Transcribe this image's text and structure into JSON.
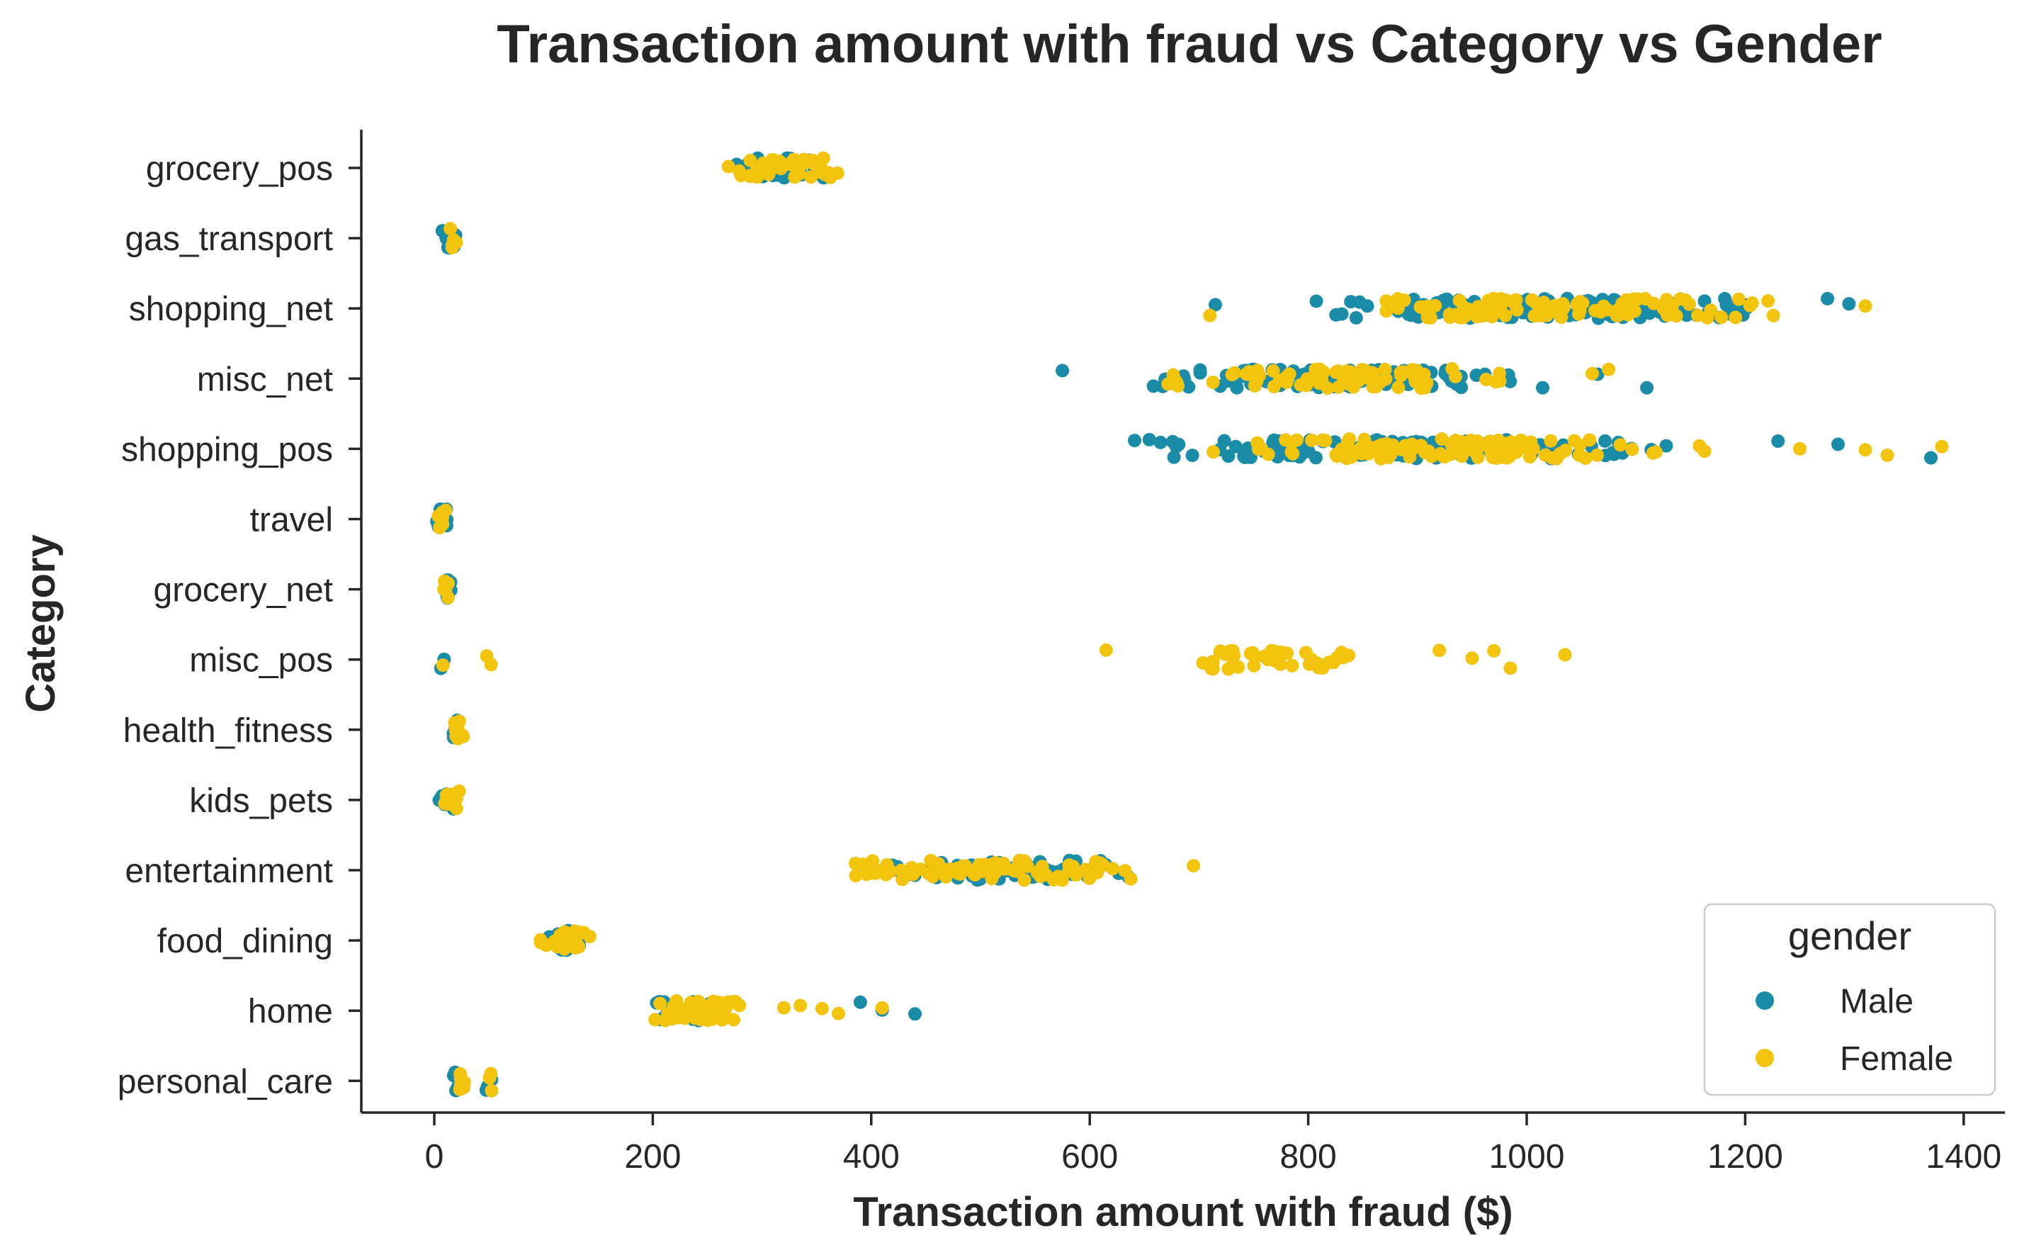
{
  "chart_data": {
    "type": "scatter",
    "title": "Transaction amount with fraud vs Category vs Gender",
    "xlabel": "Transaction amount with fraud ($)",
    "ylabel": "Category",
    "xlim": [
      -67,
      1445
    ],
    "xticks": [
      0,
      200,
      400,
      600,
      800,
      1000,
      1200,
      1400
    ],
    "categories": [
      "grocery_pos",
      "gas_transport",
      "shopping_net",
      "misc_net",
      "shopping_pos",
      "travel",
      "grocery_net",
      "misc_pos",
      "health_fitness",
      "kids_pets",
      "entertainment",
      "food_dining",
      "home",
      "personal_care"
    ],
    "grid": false,
    "legend": {
      "title": "gender",
      "position": "bottom-right"
    },
    "series": [
      {
        "name": "Male",
        "color": "#1a8ca8",
        "groups": [
          {
            "category": "grocery_pos",
            "ranges": [
              [
                238,
                390,
                40
              ]
            ],
            "points": []
          },
          {
            "category": "gas_transport",
            "ranges": [
              [
                5,
                25,
                12
              ]
            ],
            "points": []
          },
          {
            "category": "shopping_net",
            "ranges": [
              [
                735,
                1300,
                130
              ]
            ],
            "points": [
              715,
              1295
            ]
          },
          {
            "category": "misc_net",
            "ranges": [
              [
                600,
                1050,
                100
              ]
            ],
            "points": [
              575,
              1065,
              1110
            ]
          },
          {
            "category": "shopping_pos",
            "ranges": [
              [
                600,
                1190,
                130
              ]
            ],
            "points": [
              1230,
              1285,
              1370
            ]
          },
          {
            "category": "travel",
            "ranges": [
              [
                0,
                15,
                10
              ]
            ],
            "points": []
          },
          {
            "category": "grocery_net",
            "ranges": [
              [
                5,
                20,
                10
              ]
            ],
            "points": []
          },
          {
            "category": "misc_pos",
            "ranges": [],
            "points": [
              6,
              9
            ]
          },
          {
            "category": "health_fitness",
            "ranges": [
              [
                15,
                25,
                6
              ]
            ],
            "points": []
          },
          {
            "category": "kids_pets",
            "ranges": [
              [
                0,
                25,
                10
              ]
            ],
            "points": []
          },
          {
            "category": "entertainment",
            "ranges": [
              [
                365,
                690,
                70
              ]
            ],
            "points": []
          },
          {
            "category": "food_dining",
            "ranges": [
              [
                95,
                145,
                16
              ]
            ],
            "points": []
          },
          {
            "category": "home",
            "ranges": [
              [
                178,
                285,
                25
              ]
            ],
            "points": [
              390,
              410,
              440
            ]
          },
          {
            "category": "personal_care",
            "ranges": [
              [
                15,
                25,
                4
              ],
              [
                45,
                55,
                4
              ]
            ],
            "points": []
          }
        ]
      },
      {
        "name": "Female",
        "color": "#f2c40c",
        "groups": [
          {
            "category": "grocery_pos",
            "ranges": [
              [
                240,
                400,
                40
              ]
            ],
            "points": []
          },
          {
            "category": "gas_transport",
            "ranges": [
              [
                8,
                22,
                6
              ]
            ],
            "points": []
          },
          {
            "category": "shopping_net",
            "ranges": [
              [
                740,
                1290,
                110
              ]
            ],
            "points": [
              710,
              1310
            ]
          },
          {
            "category": "misc_net",
            "ranges": [
              [
                620,
                1040,
                80
              ]
            ],
            "points": [
              1060,
              1075
            ]
          },
          {
            "category": "shopping_pos",
            "ranges": [
              [
                630,
                1200,
                110
              ]
            ],
            "points": [
              1250,
              1330,
              1380,
              1310
            ]
          },
          {
            "category": "travel",
            "ranges": [
              [
                0,
                15,
                8
              ]
            ],
            "points": []
          },
          {
            "category": "grocery_net",
            "ranges": [
              [
                5,
                15,
                6
              ]
            ],
            "points": []
          },
          {
            "category": "misc_pos",
            "ranges": [
              [
                660,
                890,
                45
              ]
            ],
            "points": [
              8,
              48,
              52,
              615,
              920,
              950,
              970,
              985,
              1035
            ]
          },
          {
            "category": "health_fitness",
            "ranges": [
              [
                15,
                28,
                14
              ]
            ],
            "points": []
          },
          {
            "category": "kids_pets",
            "ranges": [
              [
                5,
                25,
                10
              ]
            ],
            "points": []
          },
          {
            "category": "entertainment",
            "ranges": [
              [
                340,
                680,
                80
              ]
            ],
            "points": [
              695
            ]
          },
          {
            "category": "food_dining",
            "ranges": [
              [
                93,
                150,
                28
              ]
            ],
            "points": []
          },
          {
            "category": "home",
            "ranges": [
              [
                185,
                300,
                60
              ]
            ],
            "points": [
              320,
              335,
              355,
              370,
              410
            ]
          },
          {
            "category": "personal_care",
            "ranges": [
              [
                15,
                35,
                8
              ],
              [
                48,
                55,
                3
              ]
            ],
            "points": []
          }
        ]
      }
    ]
  }
}
